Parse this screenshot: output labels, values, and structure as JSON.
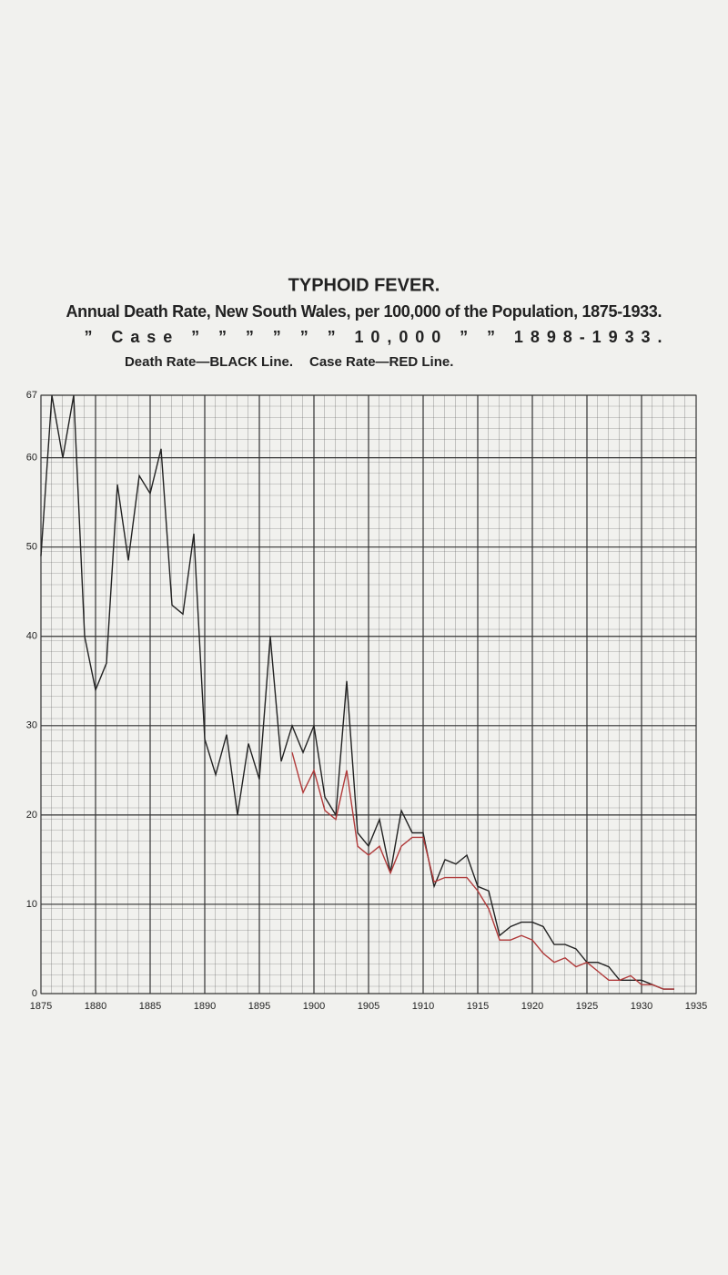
{
  "chart_data": {
    "type": "line",
    "title": "TYPHOID FEVER.",
    "subtitle": [
      "Annual Death Rate, New South Wales, per 100,000 of the Population, 1875-1933.",
      "”  Case  ”  ”  ”  ”  ”  ”  10,000  ”   ”   1898-1933."
    ],
    "x": [
      1875,
      1876,
      1877,
      1878,
      1879,
      1880,
      1881,
      1882,
      1883,
      1884,
      1885,
      1886,
      1887,
      1888,
      1889,
      1890,
      1891,
      1892,
      1893,
      1894,
      1895,
      1896,
      1897,
      1898,
      1899,
      1900,
      1901,
      1902,
      1903,
      1904,
      1905,
      1906,
      1907,
      1908,
      1909,
      1910,
      1911,
      1912,
      1913,
      1914,
      1915,
      1916,
      1917,
      1918,
      1919,
      1920,
      1921,
      1922,
      1923,
      1924,
      1925,
      1926,
      1927,
      1928,
      1929,
      1930,
      1931,
      1932,
      1933
    ],
    "series": [
      {
        "name": "Death Rate—BLACK Line.",
        "color": "#222222",
        "values": [
          49,
          67,
          60,
          67,
          40,
          34,
          37,
          57,
          48.5,
          58,
          56,
          61,
          43.5,
          42.5,
          51.5,
          28.5,
          24.5,
          29,
          20,
          28,
          24,
          40,
          26,
          30,
          27,
          30,
          22,
          20,
          35,
          18,
          16.5,
          19.5,
          13.5,
          20.5,
          18,
          18,
          12,
          15,
          14.5,
          15.5,
          12,
          11.5,
          6.5,
          7.5,
          8,
          8,
          7.5,
          5.5,
          5.5,
          5,
          3.5,
          3.5,
          3,
          1.5,
          1.5,
          1.5,
          1,
          0.5,
          0.5
        ]
      },
      {
        "name": "Case Rate—RED Line.",
        "color": "#b03a3a",
        "values": [
          null,
          null,
          null,
          null,
          null,
          null,
          null,
          null,
          null,
          null,
          null,
          null,
          null,
          null,
          null,
          null,
          null,
          null,
          null,
          null,
          null,
          null,
          null,
          27,
          22.5,
          25,
          20.5,
          19.5,
          25,
          16.5,
          15.5,
          16.5,
          13.5,
          16.5,
          17.5,
          17.5,
          12.5,
          13,
          13,
          13,
          11.5,
          9.5,
          6,
          6,
          6.5,
          6,
          4.5,
          3.5,
          4,
          3,
          3.5,
          2.5,
          1.5,
          1.5,
          2,
          1,
          1,
          0.5,
          0.5
        ]
      }
    ],
    "xlim": [
      1875,
      1935
    ],
    "xticks": [
      1875,
      1880,
      1885,
      1890,
      1895,
      1900,
      1905,
      1910,
      1915,
      1920,
      1925,
      1930,
      1935
    ],
    "ylim": [
      0,
      67
    ],
    "yticks": [
      0,
      10,
      20,
      30,
      40,
      50,
      60,
      67
    ],
    "grid": true
  }
}
